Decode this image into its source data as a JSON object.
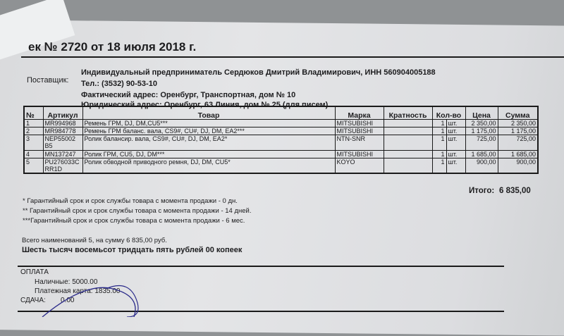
{
  "title": "ек № 2720 от 18 июля 2018 г.",
  "supplier": {
    "label": "Поставщик:",
    "name": "Индивидуальный предприниматель Сердюков Дмитрий Владимирович, ИНН 560904005188",
    "phone": "Тел.: (3532) 90-53-10",
    "actual_address": "Фактический адрес: Оренбург, Транспортная, дом № 10",
    "legal_address": "Юридический адрес: Оренбург, 63 Линия, дом № 25 (для писем)"
  },
  "table": {
    "headers": [
      "№",
      "Артикул",
      "Товар",
      "Марка",
      "Кратность",
      "Кол-во",
      "Цена",
      "Сумма"
    ],
    "rows": [
      {
        "n": "1",
        "article": "MR994968",
        "item": "Ремень ГРМ, DJ, DM,CU5***",
        "brand": "MITSUBISHI",
        "mult": "",
        "qty": "1",
        "unit": "шт.",
        "price": "2 350,00",
        "sum": "2 350,00"
      },
      {
        "n": "2",
        "article": "MR984778",
        "item": "Ремень ГРМ баланс. вала, CS9#, CU#, DJ, DM, EA2***",
        "brand": "MITSUBISHI",
        "mult": "",
        "qty": "1",
        "unit": "шт.",
        "price": "1 175,00",
        "sum": "1 175,00"
      },
      {
        "n": "3",
        "article": "NEP55002 B5",
        "item": "Ролик балансир. вала, CS9#, CU#, DJ, DM, EA2*",
        "brand": "NTN-SNR",
        "mult": "",
        "qty": "1",
        "unit": "шт.",
        "price": "725,00",
        "sum": "725,00"
      },
      {
        "n": "4",
        "article": "MN137247",
        "item": "Ролик ГРМ, CU5, DJ, DM***",
        "brand": "MITSUBISHI",
        "mult": "",
        "qty": "1",
        "unit": "шт.",
        "price": "1 685,00",
        "sum": "1 685,00"
      },
      {
        "n": "5",
        "article": "PU276033C RR1D",
        "item": "Ролик обводной приводного ремня, DJ, DM, CU5*",
        "brand": "KOYO",
        "mult": "",
        "qty": "1",
        "unit": "шт.",
        "price": "900,00",
        "sum": "900,00"
      }
    ]
  },
  "total": {
    "label": "Итого:",
    "value": "6 835,00"
  },
  "notes": [
    "* Гарантийный срок и срок службы товара с момента продажи - 0 дн.",
    "** Гарантийный срок и срок службы товара с момента продажи - 14 дней.",
    "***Гарантийный срок и срок службы товара с момента продажи - 6 мес."
  ],
  "summary": "Всего наименований 5, на сумму 6 835,00 руб.",
  "amount_words": "Шесть тысяч восемьсот тридцать пять рублей 00 копеек",
  "payment": {
    "title": "ОПЛАТА",
    "cash": "Наличные: 5000.00",
    "card": "Платежная карта: 1835.00",
    "change": "СДАЧА:",
    "change_value": "0.00"
  },
  "colors": {
    "ink": "#1c1c1e",
    "pen": "#2a2a8a",
    "paper": "#e0e1e3"
  }
}
